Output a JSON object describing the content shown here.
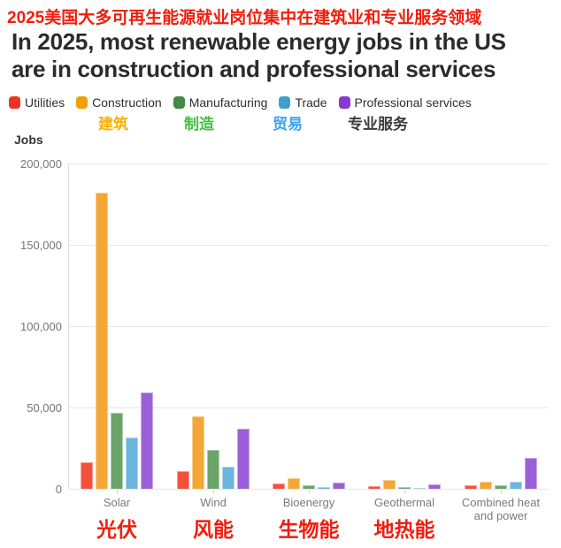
{
  "overlay": {
    "red": "#f21d0d",
    "title_zh": "2025美国大多可再生能源就业岗位集中在建筑业和专业服务领域",
    "legend_zh": [
      {
        "text": "建筑",
        "color": "#f6b40a"
      },
      {
        "text": "制造",
        "color": "#3fbf3f"
      },
      {
        "text": "贸易",
        "color": "#3da2f5"
      },
      {
        "text": "专业服务",
        "color": "#3c3c3c"
      }
    ],
    "category_zh": [
      "光伏",
      "风能",
      "生物能",
      "地热能"
    ]
  },
  "header": {
    "title_line1": "In 2025, most renewable energy jobs in the US",
    "title_line2": "are in construction and professional services"
  },
  "legend": [
    {
      "label": "Utilities",
      "color": "#ee3322"
    },
    {
      "label": "Construction",
      "color": "#f2a007"
    },
    {
      "label": "Manufacturing",
      "color": "#448a44"
    },
    {
      "label": "Trade",
      "color": "#3f9fc7"
    },
    {
      "label": "Professional services",
      "color": "#8839d0"
    }
  ],
  "chart_data": {
    "type": "bar",
    "title": "In 2025, most renewable energy jobs in the US are in construction and professional services",
    "ylabel": "Jobs",
    "xlabel": "",
    "ylim": [
      0,
      200000
    ],
    "yticks": [
      "0",
      "50,000",
      "100,000",
      "150,000",
      "200,000"
    ],
    "grid": "horizontal",
    "legend_position": "top",
    "categories": [
      "Solar",
      "Wind",
      "Bioenergy",
      "Geothermal",
      "Combined heat and power"
    ],
    "series": [
      {
        "name": "Utilities",
        "color": "#f4503a",
        "values": [
          16500,
          11000,
          3500,
          1600,
          2200
        ]
      },
      {
        "name": "Construction",
        "color": "#f4a636",
        "values": [
          182000,
          44500,
          6500,
          5500,
          4300
        ]
      },
      {
        "name": "Manufacturing",
        "color": "#6ba469",
        "values": [
          46500,
          24000,
          2000,
          1000,
          2000
        ]
      },
      {
        "name": "Trade",
        "color": "#6cb5dc",
        "values": [
          31500,
          13500,
          1300,
          800,
          4400
        ]
      },
      {
        "name": "Professional services",
        "color": "#9c5fd8",
        "values": [
          59000,
          37000,
          4000,
          2700,
          19000
        ]
      }
    ]
  }
}
